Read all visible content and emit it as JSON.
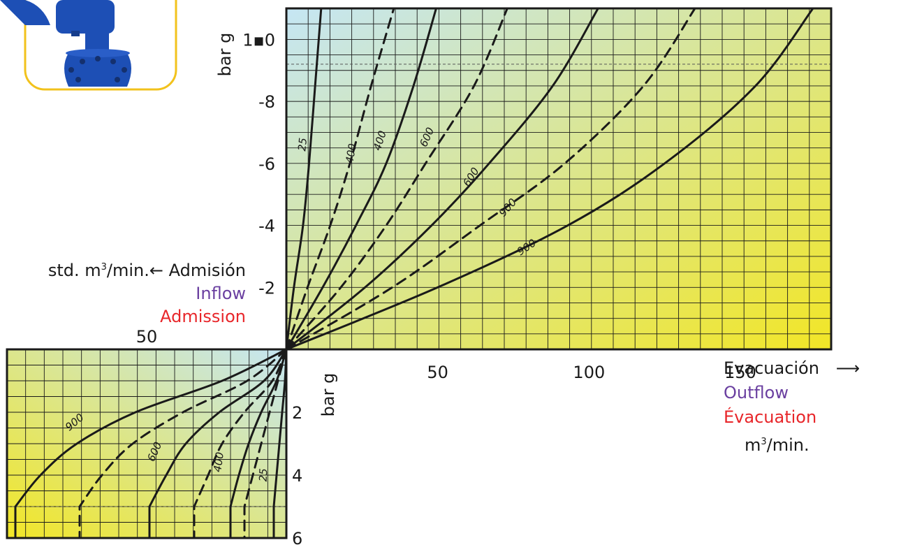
{
  "colors": {
    "gradient_start": "#c5e6f4",
    "gradient_end": "#f2e626",
    "ink": "#1a1a1a",
    "spanish_text": "#1a1a1a",
    "english_text": "#6a3fa0",
    "french_text": "#e8262a",
    "product_border": "#f2c21c",
    "product_body": "#1d4fb5"
  },
  "product_photo": {
    "icon": "blue-valve-photo",
    "border_color": "#f2c21c"
  },
  "inflow": {
    "unit_prefix": "std. m",
    "unit_sup": "3",
    "unit_suffix": "/min.",
    "arrow": "←",
    "label_es": "Admisión",
    "label_en": "Inflow",
    "label_fr": "Admission"
  },
  "outflow": {
    "label_es": "Evacuación",
    "label_en": "Outflow",
    "label_fr": "Évacuation",
    "unit_prefix": "m",
    "unit_sup": "3",
    "unit_suffix": "/min.",
    "arrow": "⟶"
  },
  "chart_data": [
    {
      "type": "line",
      "panel": "vacuum-evacuation",
      "xlabel": "",
      "ylabel": "bar g",
      "xlim": [
        0,
        180
      ],
      "ylim": [
        0,
        11
      ],
      "x_ticks": [
        "50",
        "100",
        "150"
      ],
      "x_tick_values": [
        50,
        100,
        150
      ],
      "y_ticks": [
        "1▪0",
        "-8",
        "-6",
        "-4",
        "-2"
      ],
      "y_tick_values": [
        10,
        8,
        6,
        4,
        2
      ],
      "reference_line_y": 9.2,
      "grid": true,
      "series": [
        {
          "name": "25",
          "dashed": false,
          "x": [
            0,
            2.5,
            5.5,
            7.5,
            9.5,
            11.5
          ],
          "y": [
            0,
            2,
            4,
            6,
            8.5,
            11
          ]
        },
        {
          "name": "400",
          "dashed": true,
          "x": [
            0,
            7,
            14.5,
            21,
            28,
            35.5
          ],
          "y": [
            0,
            2,
            4,
            6,
            8.5,
            11
          ]
        },
        {
          "name": "400",
          "dashed": false,
          "x": [
            0,
            12,
            23,
            33,
            42,
            49.5
          ],
          "y": [
            0,
            2,
            4,
            6,
            8.5,
            11
          ]
        },
        {
          "name": "600",
          "dashed": true,
          "x": [
            0,
            18,
            33,
            46,
            62,
            73
          ],
          "y": [
            0,
            2,
            4,
            6,
            8.5,
            11
          ]
        },
        {
          "name": "600",
          "dashed": false,
          "x": [
            0,
            26,
            48,
            67,
            88,
            103
          ],
          "y": [
            0,
            2,
            4,
            6,
            8.5,
            11
          ]
        },
        {
          "name": "900",
          "dashed": true,
          "x": [
            0,
            35,
            64,
            92,
            118,
            135
          ],
          "y": [
            0,
            2,
            4,
            6,
            8.5,
            11
          ]
        },
        {
          "name": "900",
          "dashed": false,
          "x": [
            0,
            50,
            93,
            125,
            155,
            174
          ],
          "y": [
            0,
            2,
            4,
            6,
            8.5,
            11
          ]
        }
      ],
      "curve_labels": [
        {
          "text": "25",
          "x": 6.5,
          "y": 6.6
        },
        {
          "text": "400",
          "x": 22.5,
          "y": 6.3
        },
        {
          "text": "400",
          "x": 32,
          "y": 6.7
        },
        {
          "text": "600",
          "x": 47.5,
          "y": 6.8
        },
        {
          "text": "600",
          "x": 62,
          "y": 5.5
        },
        {
          "text": "900",
          "x": 74,
          "y": 4.5
        },
        {
          "text": "900",
          "x": 80,
          "y": 3.2
        }
      ]
    },
    {
      "type": "line",
      "panel": "pressure-inflow",
      "xlabel": "",
      "ylabel": "bar g",
      "xlim": [
        0,
        100
      ],
      "ylim": [
        0,
        6
      ],
      "x_ticks": [
        "50"
      ],
      "x_tick_values": [
        50
      ],
      "y_ticks": [
        "2",
        "4",
        "6"
      ],
      "y_tick_values": [
        2,
        4,
        6
      ],
      "reference_line_y": 5,
      "grid": true,
      "series": [
        {
          "name": "25",
          "dashed": false,
          "x": [
            0,
            0.5,
            1.5,
            2.5,
            3.5,
            4.5,
            4.5
          ],
          "y": [
            0,
            1,
            2,
            3,
            4,
            5,
            6
          ]
        },
        {
          "name": "400",
          "dashed": true,
          "x": [
            0,
            3,
            6,
            9,
            12,
            15,
            15
          ],
          "y": [
            0,
            1,
            2,
            3,
            4,
            5,
            6
          ]
        },
        {
          "name": "400",
          "dashed": false,
          "x": [
            0,
            3.5,
            9,
            13.5,
            17,
            20,
            20
          ],
          "y": [
            0,
            1,
            2,
            3,
            4,
            5,
            6
          ]
        },
        {
          "name": "600",
          "dashed": true,
          "x": [
            0,
            5,
            15,
            23,
            28,
            33,
            33
          ],
          "y": [
            0,
            1,
            2,
            3,
            4,
            5,
            6
          ]
        },
        {
          "name": "600",
          "dashed": false,
          "x": [
            0,
            8,
            24,
            36,
            43,
            49,
            49
          ],
          "y": [
            0,
            1,
            2,
            3,
            4,
            5,
            6
          ]
        },
        {
          "name": "900",
          "dashed": true,
          "x": [
            0,
            14,
            37,
            55,
            66,
            74,
            74
          ],
          "y": [
            0,
            1,
            2,
            3,
            4,
            5,
            6
          ]
        },
        {
          "name": "900",
          "dashed": false,
          "x": [
            0,
            23,
            54,
            75,
            88,
            97,
            97
          ],
          "y": [
            0,
            1,
            2,
            3,
            4,
            5,
            6
          ]
        }
      ],
      "curve_labels": [
        {
          "text": "25",
          "x": 7,
          "y": 4
        },
        {
          "text": "400",
          "x": 23,
          "y": 3.6
        },
        {
          "text": "600",
          "x": 46,
          "y": 3.3
        },
        {
          "text": "900",
          "x": 75,
          "y": 2.4
        }
      ]
    }
  ]
}
